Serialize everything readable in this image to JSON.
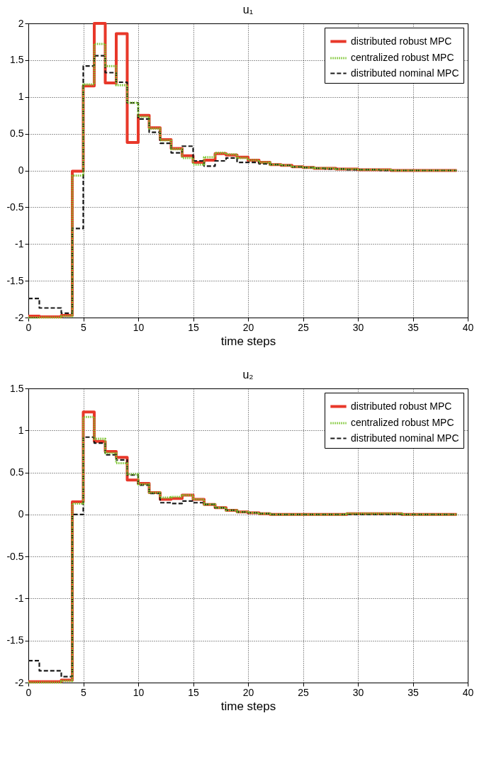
{
  "chart_data": [
    {
      "type": "step",
      "title": "u₁",
      "xlabel": "time steps",
      "x": [
        0,
        1,
        2,
        3,
        4,
        5,
        6,
        7,
        8,
        9,
        10,
        11,
        12,
        13,
        14,
        15,
        16,
        17,
        18,
        19,
        20,
        21,
        22,
        23,
        24,
        25,
        26,
        27,
        28,
        29,
        30,
        31,
        32,
        33,
        34,
        35,
        36,
        37,
        38,
        39
      ],
      "series": [
        {
          "name": "distributed robust MPC",
          "color": "#e8382a",
          "line_style": "solid",
          "values": [
            -1.98,
            -1.99,
            -1.99,
            -1.97,
            -0.01,
            1.15,
            2.0,
            1.19,
            1.86,
            0.38,
            0.75,
            0.58,
            0.42,
            0.3,
            0.2,
            0.11,
            0.14,
            0.23,
            0.21,
            0.18,
            0.14,
            0.11,
            0.08,
            0.07,
            0.05,
            0.04,
            0.03,
            0.03,
            0.02,
            0.02,
            0.01,
            0.01,
            0.01,
            0,
            0,
            0,
            0,
            0,
            0,
            0
          ]
        },
        {
          "name": "centralized robust MPC",
          "color": "#7ac52e",
          "line_style": "dotted",
          "values": [
            -2.0,
            -2.0,
            -2.0,
            -1.98,
            -0.07,
            1.17,
            1.72,
            1.42,
            1.16,
            0.92,
            0.73,
            0.57,
            0.41,
            0.29,
            0.17,
            0.08,
            0.18,
            0.24,
            0.22,
            0.17,
            0.14,
            0.11,
            0.08,
            0.07,
            0.05,
            0.04,
            0.03,
            0.03,
            0.02,
            0.02,
            0.01,
            0.01,
            0.01,
            0,
            0,
            0,
            0,
            0,
            0,
            0
          ]
        },
        {
          "name": "distributed nominal MPC",
          "color": "#1a1a1a",
          "line_style": "dashed",
          "values": [
            -1.74,
            -1.87,
            -1.87,
            -1.94,
            -0.79,
            1.42,
            1.56,
            1.33,
            1.2,
            0.92,
            0.7,
            0.52,
            0.37,
            0.24,
            0.33,
            0.13,
            0.06,
            0.13,
            0.17,
            0.11,
            0.11,
            0.09,
            0.08,
            0.07,
            0.05,
            0.04,
            0.03,
            0.02,
            0.02,
            0.01,
            0.01,
            0.01,
            0,
            0,
            0,
            0,
            0,
            0,
            0,
            0
          ]
        }
      ],
      "xlim": [
        0,
        40
      ],
      "xticks": [
        0,
        5,
        10,
        15,
        20,
        25,
        30,
        35,
        40
      ],
      "ylim": [
        -2,
        2
      ],
      "yticks": [
        -2,
        -1.5,
        -1,
        -0.5,
        0,
        0.5,
        1,
        1.5,
        2
      ],
      "grid": true,
      "legend": "top right"
    },
    {
      "type": "step",
      "title": "u₂",
      "xlabel": "time steps",
      "x": [
        0,
        1,
        2,
        3,
        4,
        5,
        6,
        7,
        8,
        9,
        10,
        11,
        12,
        13,
        14,
        15,
        16,
        17,
        18,
        19,
        20,
        21,
        22,
        23,
        24,
        25,
        26,
        27,
        28,
        29,
        30,
        31,
        32,
        33,
        34,
        35,
        36,
        37,
        38,
        39
      ],
      "series": [
        {
          "name": "distributed robust MPC",
          "color": "#e8382a",
          "line_style": "solid",
          "values": [
            -1.99,
            -1.99,
            -1.99,
            -1.97,
            0.15,
            1.22,
            0.87,
            0.75,
            0.68,
            0.41,
            0.37,
            0.26,
            0.18,
            0.19,
            0.23,
            0.18,
            0.12,
            0.08,
            0.05,
            0.03,
            0.02,
            0.01,
            0,
            0,
            0,
            0,
            0,
            0,
            0,
            0.01,
            0.01,
            0.01,
            0.01,
            0.01,
            0,
            0,
            0,
            0,
            0,
            0
          ]
        },
        {
          "name": "centralized robust MPC",
          "color": "#7ac52e",
          "line_style": "dotted",
          "values": [
            -2.0,
            -2.0,
            -2.0,
            -1.98,
            0.13,
            1.16,
            0.9,
            0.73,
            0.61,
            0.48,
            0.36,
            0.26,
            0.2,
            0.21,
            0.23,
            0.18,
            0.12,
            0.08,
            0.05,
            0.03,
            0.02,
            0.01,
            0,
            0,
            0,
            0,
            0,
            0,
            0,
            0.01,
            0.01,
            0.01,
            0.01,
            0.01,
            0,
            0,
            0,
            0,
            0,
            0
          ]
        },
        {
          "name": "distributed nominal MPC",
          "color": "#1a1a1a",
          "line_style": "dashed",
          "values": [
            -1.74,
            -1.86,
            -1.86,
            -1.93,
            0.0,
            0.92,
            0.85,
            0.71,
            0.65,
            0.47,
            0.35,
            0.25,
            0.14,
            0.13,
            0.16,
            0.14,
            0.12,
            0.08,
            0.05,
            0.03,
            0.02,
            0.01,
            0,
            0,
            0,
            0,
            0,
            0,
            0,
            0,
            0,
            0,
            0,
            0,
            0,
            0,
            0,
            0,
            0,
            0
          ]
        }
      ],
      "xlim": [
        0,
        40
      ],
      "xticks": [
        0,
        5,
        10,
        15,
        20,
        25,
        30,
        35,
        40
      ],
      "ylim": [
        -2,
        1.5
      ],
      "yticks": [
        -2,
        -1.5,
        -1,
        -0.5,
        0,
        0.5,
        1,
        1.5
      ],
      "grid": true,
      "legend": "top right"
    }
  ]
}
